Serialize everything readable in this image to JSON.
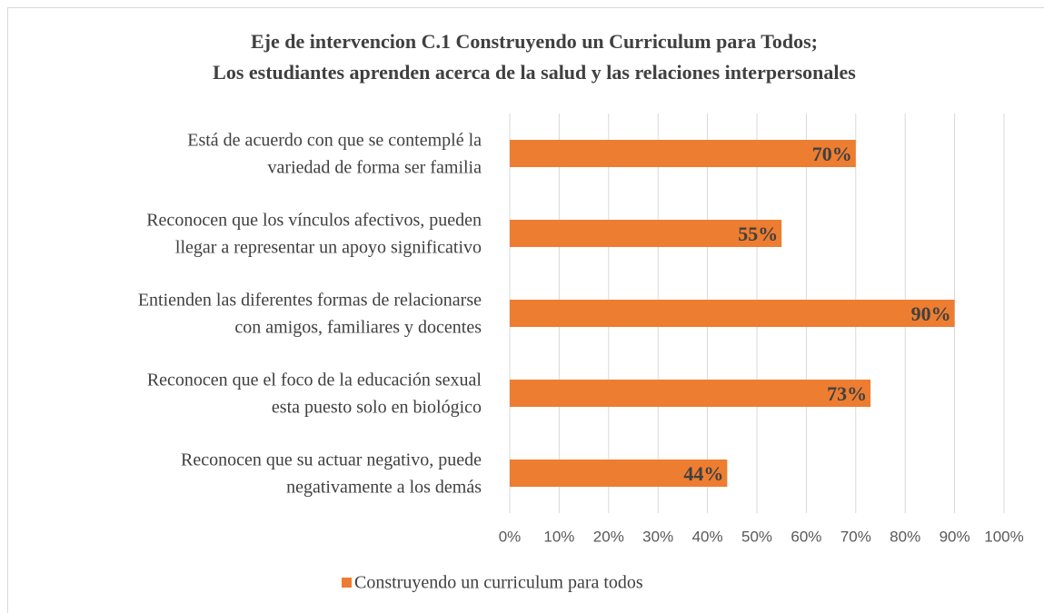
{
  "chart_data": {
    "type": "bar",
    "orientation": "horizontal",
    "title": [
      "Eje de intervencion C.1 Construyendo un Curriculum para Todos;",
      "Los estudiantes aprenden acerca de la salud y las relaciones interpersonales"
    ],
    "categories": [
      [
        "Está de acuerdo con que se contemplé la",
        "variedad de forma ser familia"
      ],
      [
        "Reconocen que los vínculos afectivos, pueden",
        "llegar a representar un apoyo significativo"
      ],
      [
        "Entienden las diferentes formas de relacionarse",
        "con amigos, familiares y docentes"
      ],
      [
        "Reconocen que el foco de la educación sexual",
        "esta puesto solo en biológico"
      ],
      [
        "Reconocen que su actuar negativo, puede",
        "negativamente a los demás"
      ]
    ],
    "series": [
      {
        "name": "Construyendo un curriculum para todos",
        "color": "#ED7D31",
        "values": [
          70,
          55,
          90,
          73,
          44
        ],
        "value_labels": [
          "70%",
          "55%",
          "90%",
          "73%",
          "44%"
        ]
      }
    ],
    "xlim": [
      0,
      100
    ],
    "xticks": [
      {
        "value": 0,
        "label": "0%"
      },
      {
        "value": 10,
        "label": "10%"
      },
      {
        "value": 20,
        "label": "20%"
      },
      {
        "value": 30,
        "label": "30%"
      },
      {
        "value": 40,
        "label": "40%"
      },
      {
        "value": 50,
        "label": "50%"
      },
      {
        "value": 60,
        "label": "60%"
      },
      {
        "value": 70,
        "label": "70%"
      },
      {
        "value": 80,
        "label": "80%"
      },
      {
        "value": 90,
        "label": "90%"
      },
      {
        "value": 100,
        "label": "100%"
      }
    ],
    "grid": true,
    "legend": "bottom"
  }
}
